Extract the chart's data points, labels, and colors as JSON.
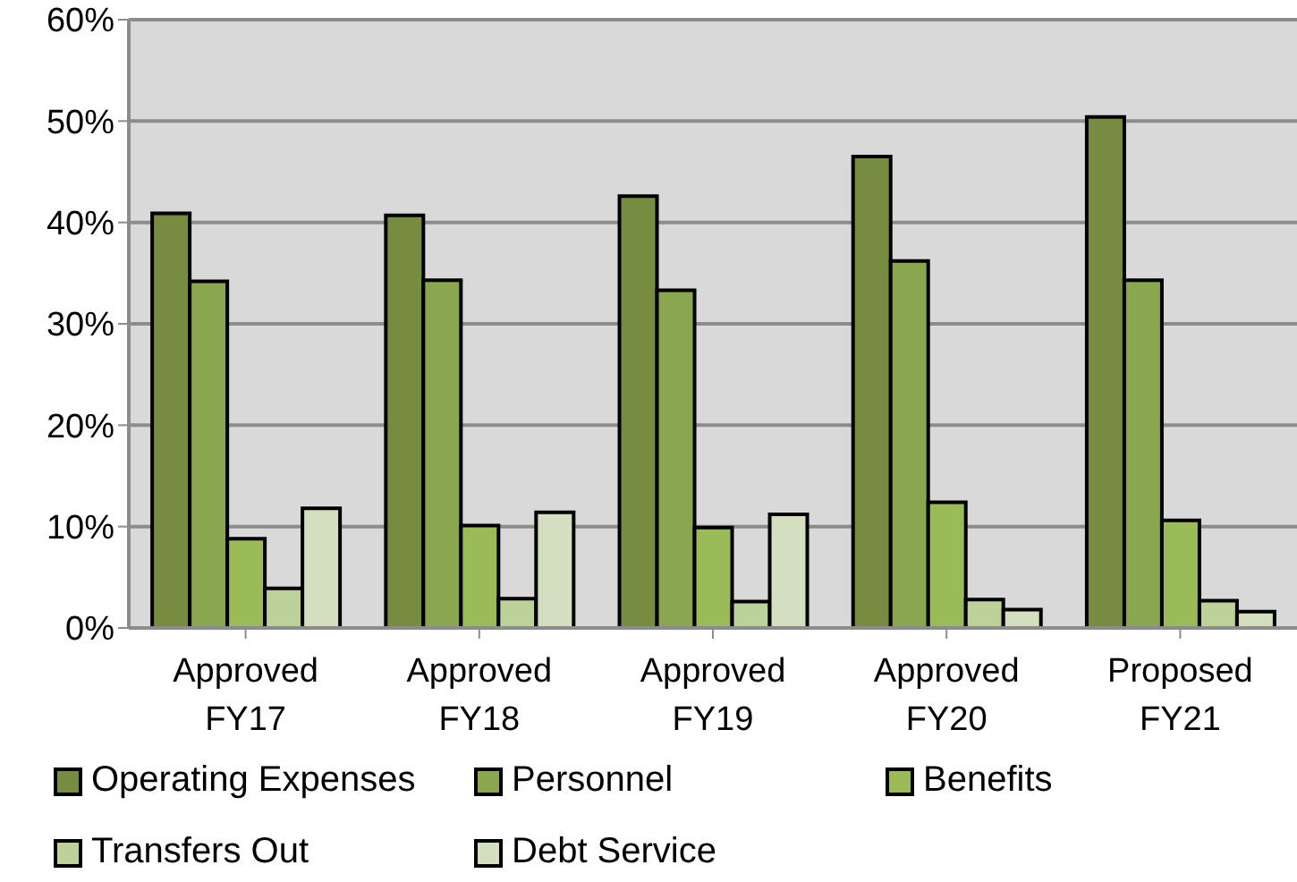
{
  "chart_data": {
    "type": "bar",
    "categories": [
      "Approved FY17",
      "Approved FY18",
      "Approved FY19",
      "Approved FY20",
      "Proposed FY21"
    ],
    "series": [
      {
        "name": "Operating Expenses",
        "color": "#768d41",
        "values": [
          40.9,
          40.7,
          42.6,
          46.5,
          50.4
        ]
      },
      {
        "name": "Personnel",
        "color": "#8aa64e",
        "values": [
          34.2,
          34.3,
          33.3,
          36.2,
          34.3
        ]
      },
      {
        "name": "Benefits",
        "color": "#9bbb59",
        "values": [
          8.8,
          10.1,
          9.9,
          12.4,
          10.6
        ]
      },
      {
        "name": "Transfers Out",
        "color": "#bdd19b",
        "values": [
          3.9,
          2.9,
          2.6,
          2.8,
          2.7
        ]
      },
      {
        "name": "Debt Service",
        "color": "#d3dfbf",
        "values": [
          11.8,
          11.4,
          11.2,
          1.8,
          1.6
        ]
      }
    ],
    "ylim": [
      0,
      60
    ],
    "yticks": [
      {
        "value": 0,
        "label": "0%"
      },
      {
        "value": 10,
        "label": "10%"
      },
      {
        "value": 20,
        "label": "20%"
      },
      {
        "value": 30,
        "label": "30%"
      },
      {
        "value": 40,
        "label": "40%"
      },
      {
        "value": 50,
        "label": "50%"
      },
      {
        "value": 60,
        "label": "60%"
      }
    ],
    "grid": "y",
    "legend": "bottom"
  }
}
